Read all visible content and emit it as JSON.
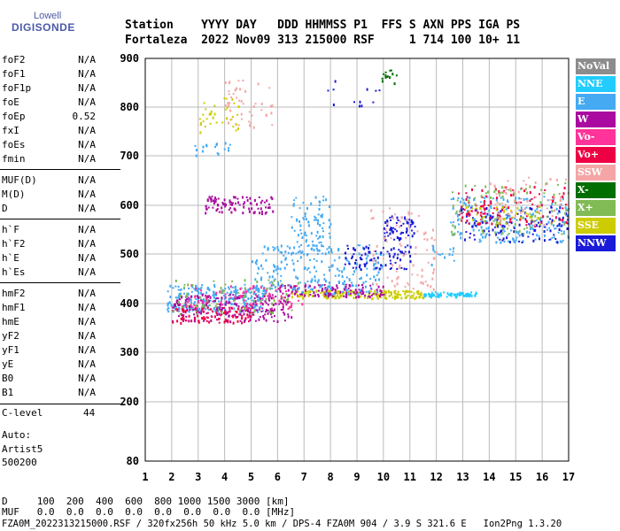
{
  "logo": {
    "line1": "Lowell",
    "line2": "DIGISONDE"
  },
  "header": {
    "row1": "Station    YYYY DAY   DDD HHMMSS P1  FFS S AXN PPS IGA PS",
    "row2": "Fortaleza  2022 Nov09 313 215000 RSF     1 714 100 10+ 11"
  },
  "params_group1": [
    {
      "name": "foF2",
      "value": "N/A"
    },
    {
      "name": "foF1",
      "value": "N/A"
    },
    {
      "name": "foF1p",
      "value": "N/A"
    },
    {
      "name": "foE",
      "value": "N/A"
    },
    {
      "name": "foEp",
      "value": "0.52"
    },
    {
      "name": "fxI",
      "value": "N/A"
    },
    {
      "name": "foEs",
      "value": "N/A"
    },
    {
      "name": "fmin",
      "value": "N/A"
    }
  ],
  "params_group2": [
    {
      "name": "MUF(D)",
      "value": "N/A"
    },
    {
      "name": "M(D)",
      "value": "N/A"
    },
    {
      "name": "D",
      "value": "N/A"
    }
  ],
  "params_group3": [
    {
      "name": "h`F",
      "value": "N/A"
    },
    {
      "name": "h`F2",
      "value": "N/A"
    },
    {
      "name": "h`E",
      "value": "N/A"
    },
    {
      "name": "h`Es",
      "value": "N/A"
    }
  ],
  "params_group4": [
    {
      "name": "hmF2",
      "value": "N/A"
    },
    {
      "name": "hmF1",
      "value": "N/A"
    },
    {
      "name": "hmE",
      "value": "N/A"
    },
    {
      "name": "yF2",
      "value": "N/A"
    },
    {
      "name": "yF1",
      "value": "N/A"
    },
    {
      "name": "yE",
      "value": "N/A"
    },
    {
      "name": "B0",
      "value": "N/A"
    },
    {
      "name": "B1",
      "value": "N/A"
    }
  ],
  "clevel": {
    "name": "C-level",
    "value": "44"
  },
  "auto": {
    "line1": "Auto:",
    "line2": "Artist5",
    "line3": "500200"
  },
  "legend": [
    {
      "label": "NoVal",
      "color": "#8c8c8c"
    },
    {
      "label": "NNE",
      "color": "#22ccff"
    },
    {
      "label": "E",
      "color": "#45aaf2"
    },
    {
      "label": "W",
      "color": "#aa0aa0"
    },
    {
      "label": "Vo-",
      "color": "#ff3399"
    },
    {
      "label": "Vo+",
      "color": "#ee0044"
    },
    {
      "label": "SSW",
      "color": "#f4a6a6"
    },
    {
      "label": "X-",
      "color": "#006e00"
    },
    {
      "label": "X+",
      "color": "#80bb55"
    },
    {
      "label": "SSE",
      "color": "#cccc00"
    },
    {
      "label": "NNW",
      "color": "#1a1ad8"
    }
  ],
  "footer": {
    "row_d": "D     100  200  400  600  800 1000 1500 3000 [km]",
    "row_muf": "MUF   0.0  0.0  0.0  0.0  0.0  0.0  0.0  0.0 [MHz]",
    "info": "FZA0M_2022313215000.RSF / 320fx256h 50 kHz 5.0 km / DPS-4 FZA0M 904 / 3.9 S 321.6 E   Ion2Png 1.3.20"
  },
  "chart_data": {
    "type": "scatter",
    "x_ticks": [
      "1",
      "2",
      "3",
      "4",
      "5",
      "6",
      "7",
      "8",
      "9",
      "10",
      "11",
      "12",
      "13",
      "14",
      "15",
      "16",
      "17"
    ],
    "y_ticks": [
      "80",
      "200",
      "300",
      "400",
      "500",
      "600",
      "700",
      "800",
      "900"
    ],
    "xlim": [
      1,
      17
    ],
    "ylim": [
      80,
      900
    ],
    "grid": true,
    "legend_position": "right",
    "clusters": [
      {
        "name": "E",
        "color": "#45aaf2",
        "x": [
          1.8,
          5.5
        ],
        "y": [
          385,
          440
        ],
        "n": 260
      },
      {
        "name": "W",
        "color": "#aa0aa0",
        "x": [
          2.0,
          6.5
        ],
        "y": [
          365,
          420
        ],
        "n": 220
      },
      {
        "name": "Vo+",
        "color": "#ee0044",
        "x": [
          2.0,
          5.0
        ],
        "y": [
          362,
          395
        ],
        "n": 90
      },
      {
        "name": "Vo-",
        "color": "#ff3399",
        "x": [
          2.5,
          7.0
        ],
        "y": [
          390,
          440
        ],
        "n": 90
      },
      {
        "name": "X+",
        "color": "#80bb55",
        "x": [
          2.0,
          7.0
        ],
        "y": [
          380,
          450
        ],
        "n": 70
      },
      {
        "name": "SSE",
        "color": "#cccc00",
        "x": [
          6.5,
          11.5
        ],
        "y": [
          412,
          428
        ],
        "n": 180
      },
      {
        "name": "W",
        "color": "#aa0aa0",
        "x": [
          6.0,
          10.0
        ],
        "y": [
          415,
          440
        ],
        "n": 120
      },
      {
        "name": "E",
        "color": "#45aaf2",
        "x": [
          5.0,
          10.0
        ],
        "y": [
          420,
          520
        ],
        "n": 220
      },
      {
        "name": "E",
        "color": "#45aaf2",
        "x": [
          6.5,
          8.0
        ],
        "y": [
          500,
          620
        ],
        "n": 90
      },
      {
        "name": "NNW",
        "color": "#1a1ad8",
        "x": [
          8.5,
          11.0
        ],
        "y": [
          470,
          520
        ],
        "n": 80
      },
      {
        "name": "NNW",
        "color": "#1a1ad8",
        "x": [
          10.0,
          11.2
        ],
        "y": [
          530,
          580
        ],
        "n": 60
      },
      {
        "name": "SSW",
        "color": "#f4a6a6",
        "x": [
          9.5,
          12.0
        ],
        "y": [
          430,
          600
        ],
        "n": 80
      },
      {
        "name": "W",
        "color": "#aa0aa0",
        "x": [
          3.2,
          5.8
        ],
        "y": [
          585,
          620
        ],
        "n": 90
      },
      {
        "name": "NNE",
        "color": "#22ccff",
        "x": [
          11.5,
          13.5
        ],
        "y": [
          415,
          425
        ],
        "n": 70
      },
      {
        "name": "X-",
        "color": "#006e00",
        "x": [
          9.9,
          10.5
        ],
        "y": [
          850,
          880
        ],
        "n": 14
      },
      {
        "name": "NNW",
        "color": "#1a1ad8",
        "x": [
          7.8,
          9.9
        ],
        "y": [
          800,
          860
        ],
        "n": 12
      },
      {
        "name": "E",
        "color": "#45aaf2",
        "x": [
          2.8,
          4.2
        ],
        "y": [
          700,
          730
        ],
        "n": 18
      },
      {
        "name": "SSE",
        "color": "#cccc00",
        "x": [
          3.0,
          4.5
        ],
        "y": [
          750,
          820
        ],
        "n": 35
      },
      {
        "name": "SSW",
        "color": "#f4a6a6",
        "x": [
          4.0,
          5.8
        ],
        "y": [
          760,
          860
        ],
        "n": 45
      },
      {
        "name": "E",
        "color": "#45aaf2",
        "x": [
          12.5,
          17.0
        ],
        "y": [
          525,
          620
        ],
        "n": 200
      },
      {
        "name": "NNW",
        "color": "#1a1ad8",
        "x": [
          12.8,
          17.0
        ],
        "y": [
          525,
          600
        ],
        "n": 120
      },
      {
        "name": "Vo+",
        "color": "#ee0044",
        "x": [
          12.8,
          17.0
        ],
        "y": [
          560,
          640
        ],
        "n": 110
      },
      {
        "name": "X+",
        "color": "#80bb55",
        "x": [
          12.5,
          17.0
        ],
        "y": [
          540,
          650
        ],
        "n": 90
      },
      {
        "name": "SSW",
        "color": "#f4a6a6",
        "x": [
          14.0,
          17.0
        ],
        "y": [
          560,
          660
        ],
        "n": 60
      },
      {
        "name": "SSE",
        "color": "#cccc00",
        "x": [
          13.0,
          16.5
        ],
        "y": [
          560,
          600
        ],
        "n": 40
      },
      {
        "name": "E",
        "color": "#45aaf2",
        "x": [
          11.5,
          13.0
        ],
        "y": [
          480,
          520
        ],
        "n": 15
      }
    ]
  }
}
